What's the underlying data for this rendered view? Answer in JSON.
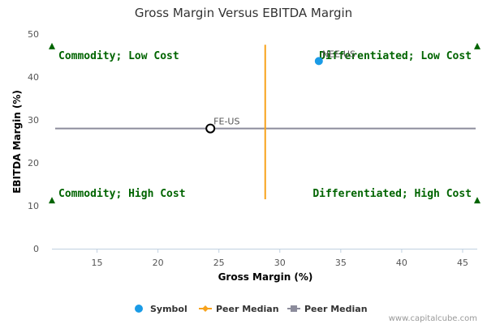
{
  "chart_data": {
    "type": "scatter",
    "title": "Gross Margin Versus EBITDA Margin",
    "xlabel": "Gross Margin (%)",
    "ylabel": "EBITDA Margin (%)",
    "xlim": [
      11.3,
      46.2
    ],
    "ylim": [
      0,
      50
    ],
    "x_ticks": [
      15,
      20,
      25,
      30,
      35,
      40,
      45
    ],
    "y_ticks": [
      0,
      10,
      20,
      30,
      40,
      50
    ],
    "grid": false,
    "points": [
      {
        "label": "NEE-US",
        "x": 33.2,
        "y": 43.7,
        "style": "filled",
        "color": "#1a9be6"
      },
      {
        "label": "FE-US",
        "x": 24.3,
        "y": 28.0,
        "style": "hollow",
        "color": "#000000"
      }
    ],
    "peer_median_x": 28.8,
    "peer_median_y": 28.0,
    "vertical_line_y_range": [
      11.5,
      47.5
    ],
    "quadrant_labels": {
      "top_left": "Commodity; Low Cost",
      "top_right": "Differentiated; Low Cost",
      "bottom_left": "Commodity; High Cost",
      "bottom_right": "Differentiated; High Cost"
    },
    "corner_markers": [
      {
        "x": 11.3,
        "y": 47.2
      },
      {
        "x": 46.2,
        "y": 47.2
      },
      {
        "x": 11.3,
        "y": 11.3
      },
      {
        "x": 46.2,
        "y": 11.3
      }
    ],
    "marker_color": "#006400",
    "vline_color": "#f7a21b",
    "hline_color": "#8c8c9c",
    "legend": [
      {
        "name": "Symbol",
        "marker": "circle",
        "color": "#1a9be6"
      },
      {
        "name": "Peer Median",
        "marker": "diamond-line",
        "color": "#f7a21b"
      },
      {
        "name": "Peer Median",
        "marker": "square-line",
        "color": "#8c8c9c"
      }
    ],
    "legend_position": "bottom-center"
  },
  "credit": "www.capitalcube.com"
}
